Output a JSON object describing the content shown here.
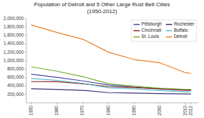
{
  "chart_data": {
    "type": "line",
    "title": "Population of Detroit and 5 Other Large Rust Belt Cities\n(1950-2012)",
    "x": [
      1950,
      1960,
      1970,
      1980,
      1990,
      2000,
      2010,
      2012
    ],
    "series": [
      {
        "name": "Pittsburgh",
        "color": "#4444aa",
        "values": [
          676806,
          604332,
          520117,
          423938,
          369879,
          334563,
          305704,
          306000
        ]
      },
      {
        "name": "Cincinnati",
        "color": "#8b2020",
        "values": [
          503998,
          502550,
          452524,
          385457,
          364040,
          331285,
          296943,
          297000
        ]
      },
      {
        "name": "St. Louis",
        "color": "#6aaa20",
        "values": [
          856796,
          750026,
          622236,
          452801,
          396685,
          348189,
          319294,
          320000
        ]
      },
      {
        "name": "Rochester",
        "color": "#3d2b6e",
        "values": [
          332488,
          318611,
          296233,
          241741,
          231636,
          219773,
          210565,
          211000
        ]
      },
      {
        "name": "Buffalo",
        "color": "#4ab8c8",
        "values": [
          580132,
          532759,
          462768,
          357870,
          328123,
          292648,
          261310,
          262000
        ]
      },
      {
        "name": "Detroit",
        "color": "#e87c20",
        "values": [
          1849568,
          1670144,
          1511482,
          1203339,
          1027974,
          951270,
          713777,
          701000
        ]
      }
    ],
    "xlim": [
      1948,
      2015
    ],
    "xticks": [
      1950,
      1960,
      1970,
      1980,
      1990,
      2000,
      2010,
      2012
    ],
    "ylim": [
      0,
      2000000
    ],
    "yticks": [
      {
        "value": 200000,
        "label": "200,000"
      },
      {
        "value": 400000,
        "label": "400,000"
      },
      {
        "value": 600000,
        "label": "600,000"
      },
      {
        "value": 800000,
        "label": "800,000"
      },
      {
        "value": 1000000,
        "label": "1,000,000"
      },
      {
        "value": 1200000,
        "label": "1,200,000"
      },
      {
        "value": 1400000,
        "label": "1,400,000"
      },
      {
        "value": 1600000,
        "label": "1,600,000"
      },
      {
        "value": 1800000,
        "label": "1,800,000"
      },
      {
        "value": 2000000,
        "label": "2,000,000"
      }
    ],
    "grid": false,
    "legend": "upper right"
  }
}
